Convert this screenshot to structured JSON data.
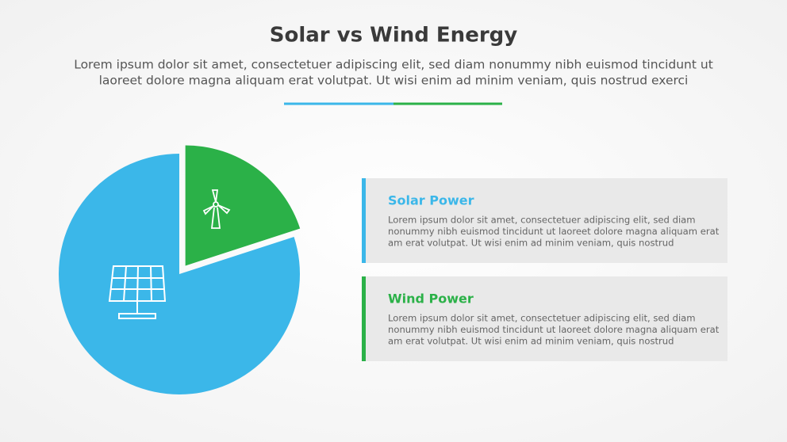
{
  "chart_data": {
    "type": "pie",
    "title": "Solar vs Wind Energy",
    "subtitle": [
      "Lorem ipsum dolor sit amet, consectetuer adipiscing elit, sed diam nonummy nibh euismod tincidunt ut",
      "laoreet dolore magna aliquam erat volutpat. Ut wisi enim ad minim veniam, quis nostrud exerci"
    ],
    "categories": [
      "Solar Power",
      "Wind Power"
    ],
    "values": [
      80,
      20
    ],
    "colors": [
      "#3bb7e9",
      "#2bb148"
    ],
    "descriptions": [
      [
        "Lorem ipsum dolor sit amet, consectetuer adipiscing elit, sed diam",
        "nonummy nibh euismod tincidunt ut laoreet dolore magna aliquam erat",
        "am erat volutpat. Ut wisi enim ad minim veniam, quis nostrud"
      ],
      [
        "Lorem ipsum dolor sit amet, consectetuer adipiscing elit, sed diam",
        "nonummy nibh euismod tincidunt ut laoreet dolore magna aliquam erat",
        "am erat volutpat. Ut wisi enim ad minim veniam, quis nostrud"
      ]
    ]
  }
}
